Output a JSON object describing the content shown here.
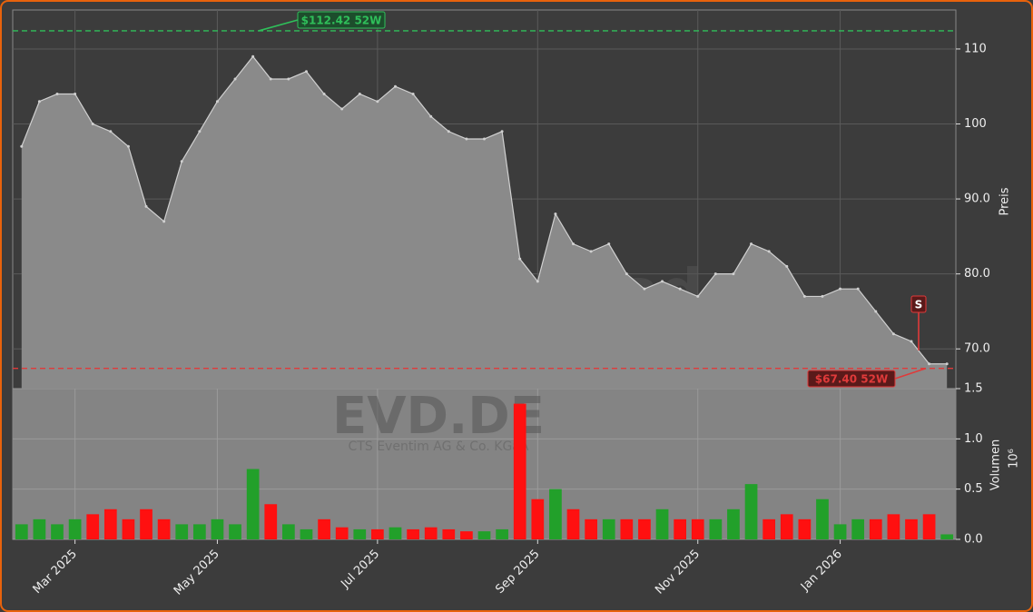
{
  "chart_data": {
    "type": "area",
    "watermark": "forexsignale.trade",
    "title": "EVD.DE",
    "subtitle": "CTS Eventim AG & Co. KGaA",
    "categories": [
      null,
      null,
      null,
      "Mar 2025",
      null,
      null,
      null,
      null,
      null,
      null,
      null,
      "May 2025",
      null,
      null,
      null,
      null,
      null,
      null,
      null,
      null,
      "Jul 2025",
      null,
      null,
      null,
      null,
      null,
      null,
      null,
      null,
      "Sep 2025",
      null,
      null,
      null,
      null,
      null,
      null,
      null,
      null,
      "Nov 2025",
      null,
      null,
      null,
      null,
      null,
      null,
      null,
      "Jan 2026",
      null,
      null,
      null,
      null,
      null,
      null
    ],
    "values": [
      97,
      103,
      104,
      104,
      100,
      99,
      97,
      89,
      87,
      95,
      99,
      103,
      106,
      109,
      106,
      106,
      107,
      104,
      102,
      104,
      103,
      105,
      104,
      101,
      99,
      98,
      98,
      99,
      82,
      79,
      88,
      84,
      83,
      84,
      80,
      78,
      79,
      78,
      77,
      80,
      80,
      84,
      83,
      81,
      77,
      77,
      78,
      78,
      75,
      72,
      71,
      68,
      68
    ],
    "color": "#8a8a8a",
    "line_color": "#d0d0d0",
    "ylabel": "Preis",
    "ylim": [
      64.7,
      115.2
    ],
    "yticks": [
      {
        "value": 70,
        "label": "70.0"
      },
      {
        "value": 80,
        "label": "80.0"
      },
      {
        "value": 90,
        "label": "90.0"
      },
      100,
      110
    ],
    "grid": true,
    "annotations": [
      {
        "text": "$112.42 52W",
        "value": 112.42,
        "color": "#2fbf5a"
      },
      {
        "text": "$67.40 52W",
        "value": 67.4,
        "color": "#e03a3a"
      }
    ],
    "signal": "S",
    "volume": {
      "type": "bar",
      "ylabel": "Volumen",
      "scale_label": "10⁶",
      "up_color": "#22a02a",
      "down_color": "#ff1010",
      "values": [
        0.15,
        0.2,
        0.15,
        0.2,
        0.25,
        0.3,
        0.2,
        0.3,
        0.2,
        0.15,
        0.15,
        0.2,
        0.15,
        0.7,
        0.35,
        0.15,
        0.1,
        0.2,
        0.12,
        0.1,
        0.1,
        0.12,
        0.1,
        0.12,
        0.1,
        0.08,
        0.08,
        0.1,
        1.35,
        0.4,
        0.5,
        0.3,
        0.2,
        0.2,
        0.2,
        0.2,
        0.3,
        0.2,
        0.2,
        0.2,
        0.3,
        0.55,
        0.2,
        0.25,
        0.2,
        0.4,
        0.15,
        0.2,
        0.2,
        0.25,
        0.2,
        0.25,
        0.05
      ],
      "ylim": [
        0,
        1.5
      ],
      "yticks": [
        {
          "value": 0,
          "label": "0.0"
        },
        0.5,
        {
          "value": 1,
          "label": "1.0"
        },
        1.5
      ]
    }
  }
}
